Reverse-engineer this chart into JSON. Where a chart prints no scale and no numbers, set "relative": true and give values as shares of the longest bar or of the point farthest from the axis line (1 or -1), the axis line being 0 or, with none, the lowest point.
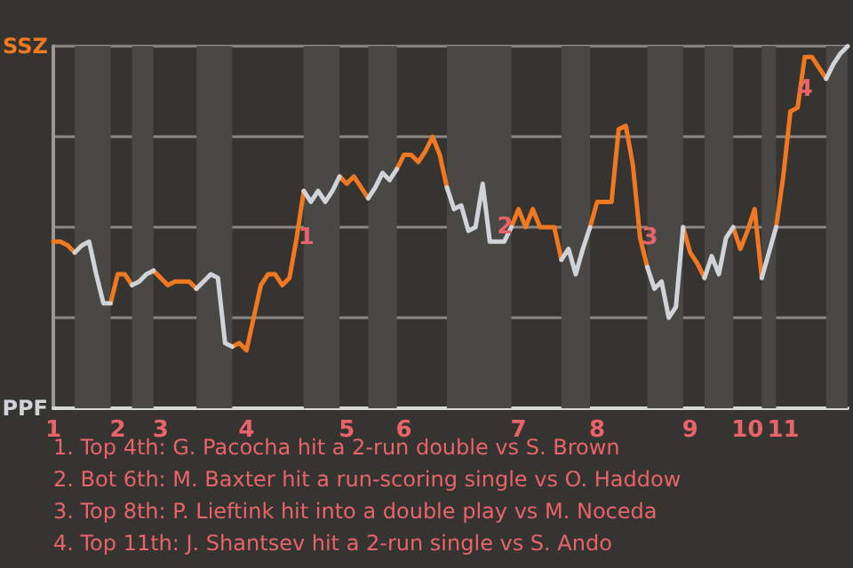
{
  "chart_data": {
    "type": "line",
    "relative": true,
    "marker": "none",
    "grid": "y",
    "categories": [
      "1",
      null,
      null,
      null,
      null,
      null,
      null,
      null,
      null,
      "2",
      null,
      null,
      null,
      null,
      null,
      "3",
      null,
      null,
      null,
      null,
      null,
      null,
      null,
      null,
      null,
      null,
      null,
      "4",
      null,
      null,
      null,
      null,
      null,
      null,
      null,
      null,
      null,
      null,
      null,
      null,
      null,
      "5",
      null,
      null,
      null,
      null,
      null,
      null,
      null,
      "6",
      null,
      null,
      null,
      null,
      null,
      null,
      null,
      null,
      null,
      null,
      null,
      null,
      null,
      null,
      null,
      "7",
      null,
      null,
      null,
      null,
      null,
      null,
      null,
      null,
      null,
      null,
      "8",
      null,
      null,
      null,
      null,
      null,
      null,
      null,
      null,
      null,
      null,
      null,
      null,
      "9",
      null,
      null,
      null,
      null,
      null,
      null,
      null,
      "10",
      null,
      null,
      null,
      null,
      "11",
      null,
      null,
      null,
      null,
      null,
      null,
      null,
      null,
      null
    ],
    "series": [
      {
        "color": "#f07820",
        "values": [
          0.46,
          0.46,
          0.45,
          0.43,
          null,
          null,
          null,
          null,
          0.29,
          0.37,
          0.37,
          0.34,
          null,
          null,
          0.38,
          0.36,
          0.34,
          0.35,
          0.35,
          0.35,
          0.33,
          null,
          null,
          null,
          null,
          0.17,
          0.18,
          0.16,
          0.25,
          0.34,
          0.37,
          0.37,
          0.34,
          0.36,
          0.47,
          0.6,
          null,
          null,
          null,
          null,
          0.64,
          0.62,
          0.64,
          0.61,
          0.58,
          null,
          null,
          null,
          0.66,
          0.7,
          0.7,
          0.68,
          0.71,
          0.75,
          0.7,
          0.61,
          null,
          null,
          null,
          null,
          null,
          null,
          null,
          null,
          0.5,
          0.55,
          0.5,
          0.55,
          0.5,
          0.5,
          0.5,
          0.41,
          null,
          null,
          null,
          0.5,
          0.57,
          0.57,
          0.57,
          0.77,
          0.78,
          0.67,
          0.47,
          0.39,
          null,
          null,
          null,
          null,
          0.5,
          0.43,
          0.4,
          0.36,
          null,
          null,
          null,
          0.5,
          0.44,
          0.49,
          0.55,
          0.36,
          null,
          0.5,
          0.64,
          0.82,
          0.83,
          0.97,
          0.97,
          0.94,
          0.91,
          null,
          null,
          null
        ]
      },
      {
        "color": "#d0d4d8",
        "values": [
          null,
          null,
          null,
          0.43,
          0.45,
          0.46,
          0.37,
          0.29,
          0.29,
          null,
          null,
          0.34,
          0.35,
          0.37,
          0.38,
          null,
          null,
          null,
          null,
          null,
          0.33,
          0.35,
          0.37,
          0.36,
          0.18,
          0.17,
          null,
          null,
          null,
          null,
          null,
          null,
          null,
          null,
          null,
          0.6,
          0.57,
          0.6,
          0.57,
          0.6,
          0.64,
          null,
          null,
          null,
          0.58,
          0.61,
          0.65,
          0.63,
          0.66,
          null,
          null,
          null,
          null,
          null,
          null,
          0.61,
          0.55,
          0.56,
          0.49,
          0.5,
          0.62,
          0.46,
          0.46,
          0.46,
          0.5,
          null,
          null,
          null,
          null,
          null,
          null,
          0.41,
          0.44,
          0.37,
          0.44,
          0.5,
          null,
          null,
          null,
          null,
          null,
          null,
          null,
          0.39,
          0.33,
          0.35,
          0.25,
          0.28,
          0.5,
          null,
          null,
          0.36,
          0.42,
          0.37,
          0.47,
          0.5,
          null,
          null,
          null,
          0.36,
          0.43,
          0.5,
          null,
          null,
          null,
          null,
          null,
          null,
          0.91,
          0.95,
          0.98,
          1.0
        ]
      }
    ],
    "annotations": [
      "SSZ",
      "PPF",
      {
        "text": "1",
        "y": 0.47
      },
      {
        "text": "2",
        "y": 0.46
      },
      {
        "text": "3",
        "y": 0.47
      },
      {
        "text": "4",
        "y": 0.97
      },
      "1. Top 4th: G. Pacocha hit a 2-run double vs S. Brown",
      "2. Bot 6th: M. Baxter hit a run-scoring single vs O. Haddow",
      "3. Top 8th: P. Lieftink hit into a double play vs M. Noceda",
      "4. Top 11th: J. Shantsev hit a 2-run single vs S. Ando"
    ]
  }
}
